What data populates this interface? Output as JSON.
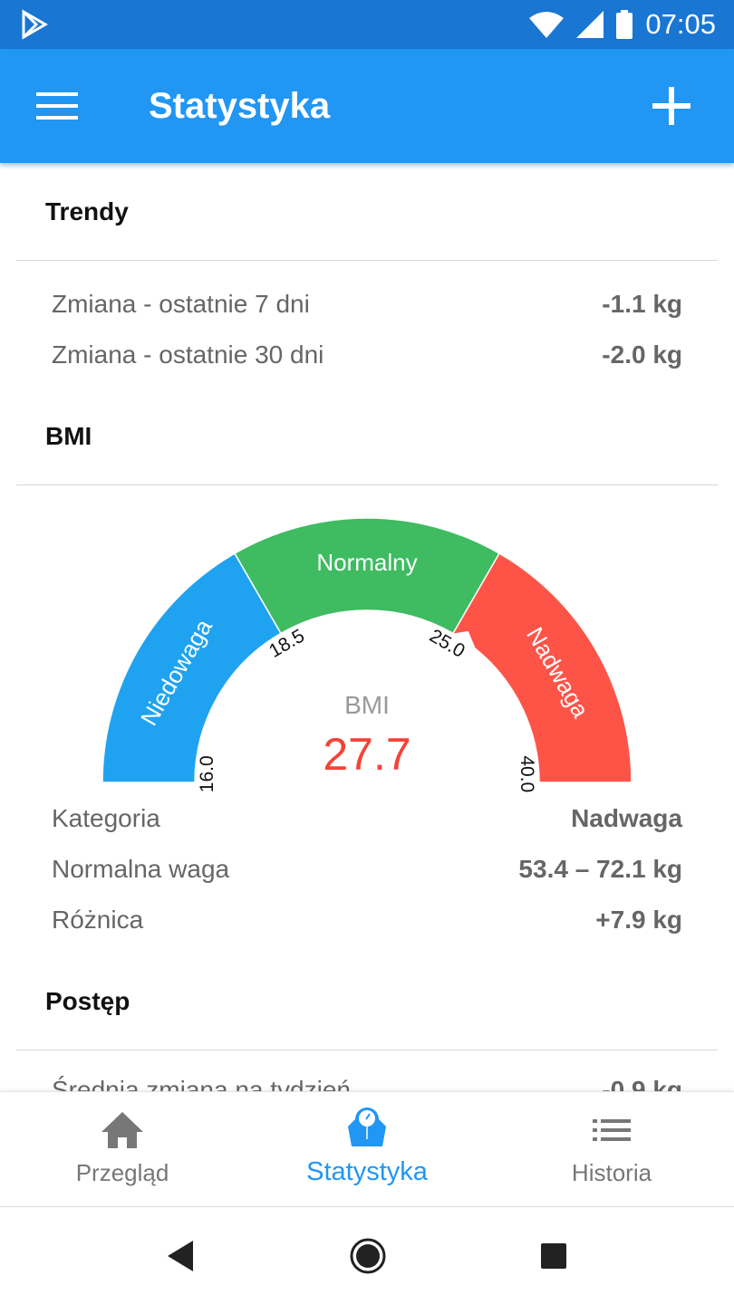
{
  "status_bar": {
    "time": "07:05"
  },
  "app_bar": {
    "title": "Statystyka",
    "menu_icon": "hamburger-icon",
    "add_icon": "plus-icon"
  },
  "trends": {
    "title": "Trendy",
    "rows": [
      {
        "label": "Zmiana - ostatnie 7 dni",
        "value": "-1.1 kg"
      },
      {
        "label": "Zmiana - ostatnie 30 dni",
        "value": "-2.0 kg"
      }
    ]
  },
  "bmi": {
    "title": "BMI",
    "gauge_label": "BMI",
    "value": "27.7",
    "value_color": "#f44336",
    "segments": [
      {
        "label": "Niedowaga",
        "color": "#1fa3f0"
      },
      {
        "label": "Normalny",
        "color": "#3fbb62"
      },
      {
        "label": "Nadwaga",
        "color": "#fe5448"
      }
    ],
    "ticks": [
      "16.0",
      "18.5",
      "25.0",
      "40.0"
    ],
    "rows": [
      {
        "label": "Kategoria",
        "value": "Nadwaga"
      },
      {
        "label": "Normalna waga",
        "value": "53.4 – 72.1 kg"
      },
      {
        "label": "Różnica",
        "value": "+7.9 kg"
      }
    ]
  },
  "progress": {
    "title": "Postęp",
    "rows": [
      {
        "label": "Średnia zmiana na tydzień",
        "value": "-0.9 kg"
      }
    ]
  },
  "bottom_nav": [
    {
      "label": "Przegląd",
      "icon": "home-icon"
    },
    {
      "label": "Statystyka",
      "icon": "scale-icon",
      "active": true
    },
    {
      "label": "Historia",
      "icon": "list-icon"
    }
  ]
}
